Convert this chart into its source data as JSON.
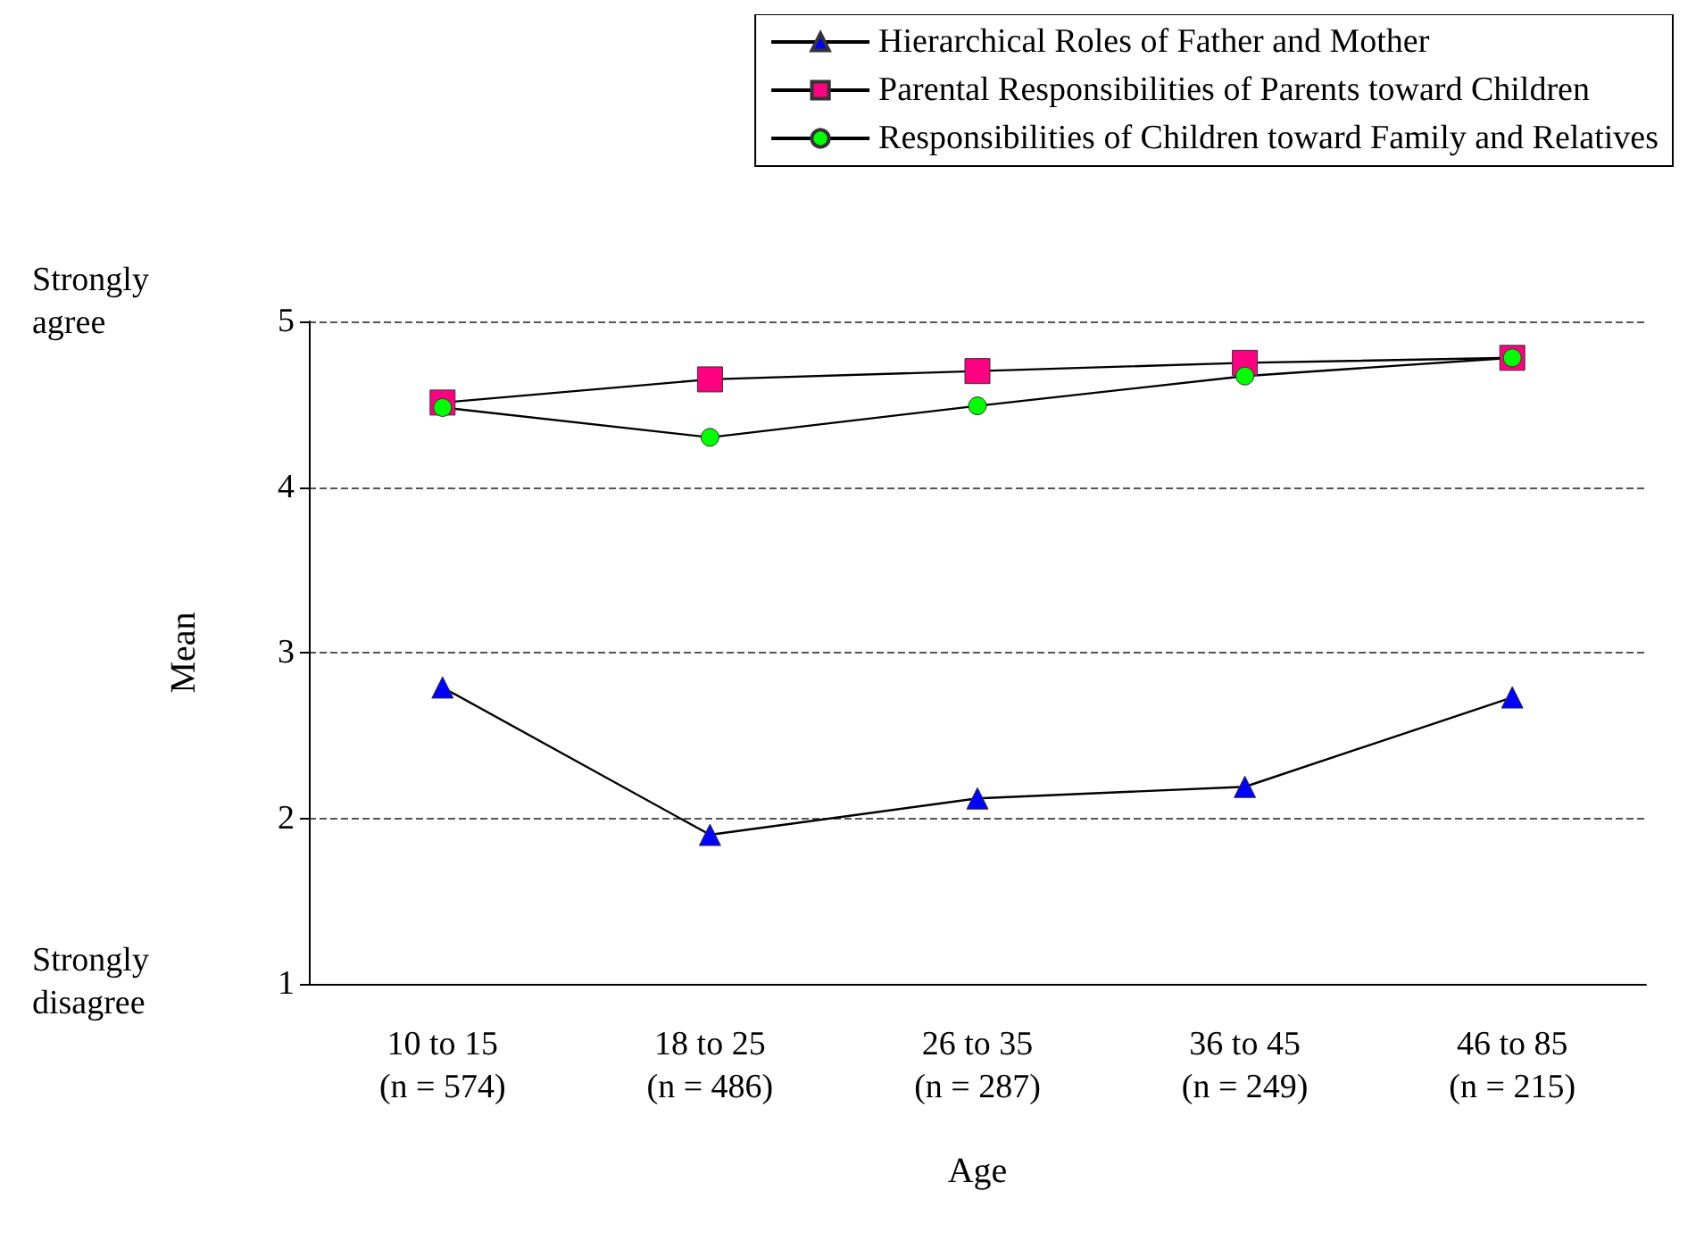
{
  "chart_data": {
    "type": "line",
    "xlabel": "Age",
    "ylabel": "Mean",
    "categories": [
      "10 to 15\n(n = 574)",
      "18 to 25\n(n = 486)",
      "26 to 35\n(n = 287)",
      "36 to 45\n(n = 249)",
      "46 to 85\n(n = 215)"
    ],
    "series": [
      {
        "name": "Hierarchical Roles of Father and Mother",
        "color": "#0000ff",
        "marker": "triangle",
        "values": [
          2.79,
          1.9,
          2.12,
          2.19,
          2.73
        ]
      },
      {
        "name": "Parental Responsibilities of Parents toward Children",
        "color": "#ff0080",
        "marker": "square",
        "values": [
          4.51,
          4.65,
          4.7,
          4.75,
          4.78
        ]
      },
      {
        "name": "Responsibilities of Children toward Family and Relatives",
        "color": "#00ff00",
        "marker": "circle",
        "values": [
          4.48,
          4.3,
          4.49,
          4.67,
          4.78
        ]
      }
    ],
    "ylim": [
      1,
      5
    ],
    "yticks": [
      1,
      2,
      3,
      4,
      5
    ],
    "grid": "y",
    "legend": "top right",
    "annotations": [
      "Strongly\nagree",
      "Strongly\ndisagree"
    ]
  }
}
